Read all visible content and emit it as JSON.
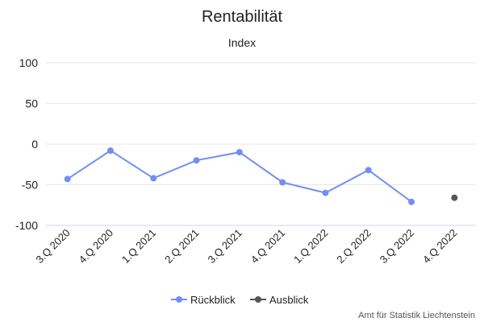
{
  "chart_data": {
    "type": "line",
    "title": "Rentabilität",
    "subtitle": "Index",
    "categories": [
      "3.Q 2020",
      "4.Q 2020",
      "1.Q 2021",
      "2.Q 2021",
      "3.Q 2021",
      "4.Q 2021",
      "1.Q 2022",
      "2.Q 2022",
      "3.Q 2022",
      "4.Q 2022"
    ],
    "series": [
      {
        "name": "Rückblick",
        "color": "#6f8ff5",
        "values": [
          -43,
          -8,
          -42,
          -20,
          -10,
          -47,
          -60,
          -32,
          -71,
          null
        ]
      },
      {
        "name": "Ausblick",
        "color": "#555555",
        "values": [
          null,
          null,
          null,
          null,
          null,
          null,
          null,
          null,
          null,
          -66
        ]
      }
    ],
    "yticks": [
      100,
      50,
      0,
      -50,
      -100
    ],
    "ylim": [
      -100,
      100
    ],
    "grid": true,
    "legend_position": "bottom-center"
  },
  "credit": "Amt für Statistik Liechtenstein"
}
